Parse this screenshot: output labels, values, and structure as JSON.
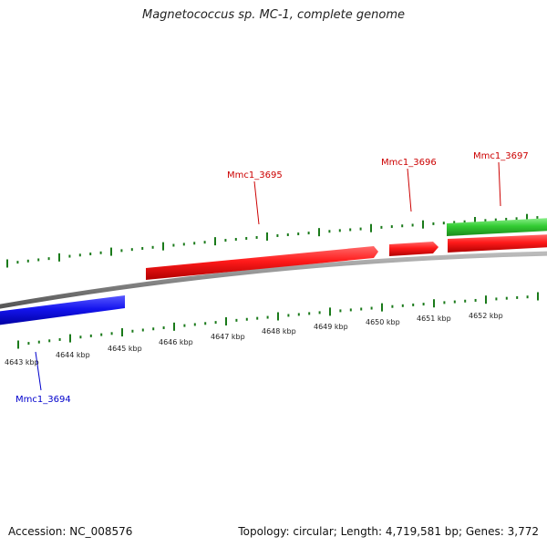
{
  "title": "Magnetococcus sp. MC-1, complete genome",
  "footer": {
    "accession": "Accession: NC_008576",
    "summary": "Topology: circular; Length: 4,719,581 bp; Genes: 3,772"
  },
  "colors": {
    "backbone": "#8c8c8c",
    "tick": "#1a7a1a",
    "reverse_strand": "#e8141c",
    "forward_strand": "#1010e6",
    "green_feature": "#33cc33",
    "label_red": "#cc0000",
    "label_blue": "#0000cc"
  },
  "genes": [
    {
      "name": "Mmc1_3695",
      "strand": "reverse",
      "color": "#e8141c"
    },
    {
      "name": "Mmc1_3696",
      "strand": "reverse",
      "color": "#e8141c"
    },
    {
      "name": "Mmc1_3697",
      "strand": "reverse",
      "color": "#e8141c"
    },
    {
      "name": "Mmc1_3694",
      "strand": "forward",
      "color": "#1010e6"
    }
  ],
  "kbp_labels": [
    "4643 kbp",
    "4644 kbp",
    "4645 kbp",
    "4646 kbp",
    "4647 kbp",
    "4648 kbp",
    "4649 kbp",
    "4650 kbp",
    "4651 kbp",
    "4652 kbp"
  ]
}
